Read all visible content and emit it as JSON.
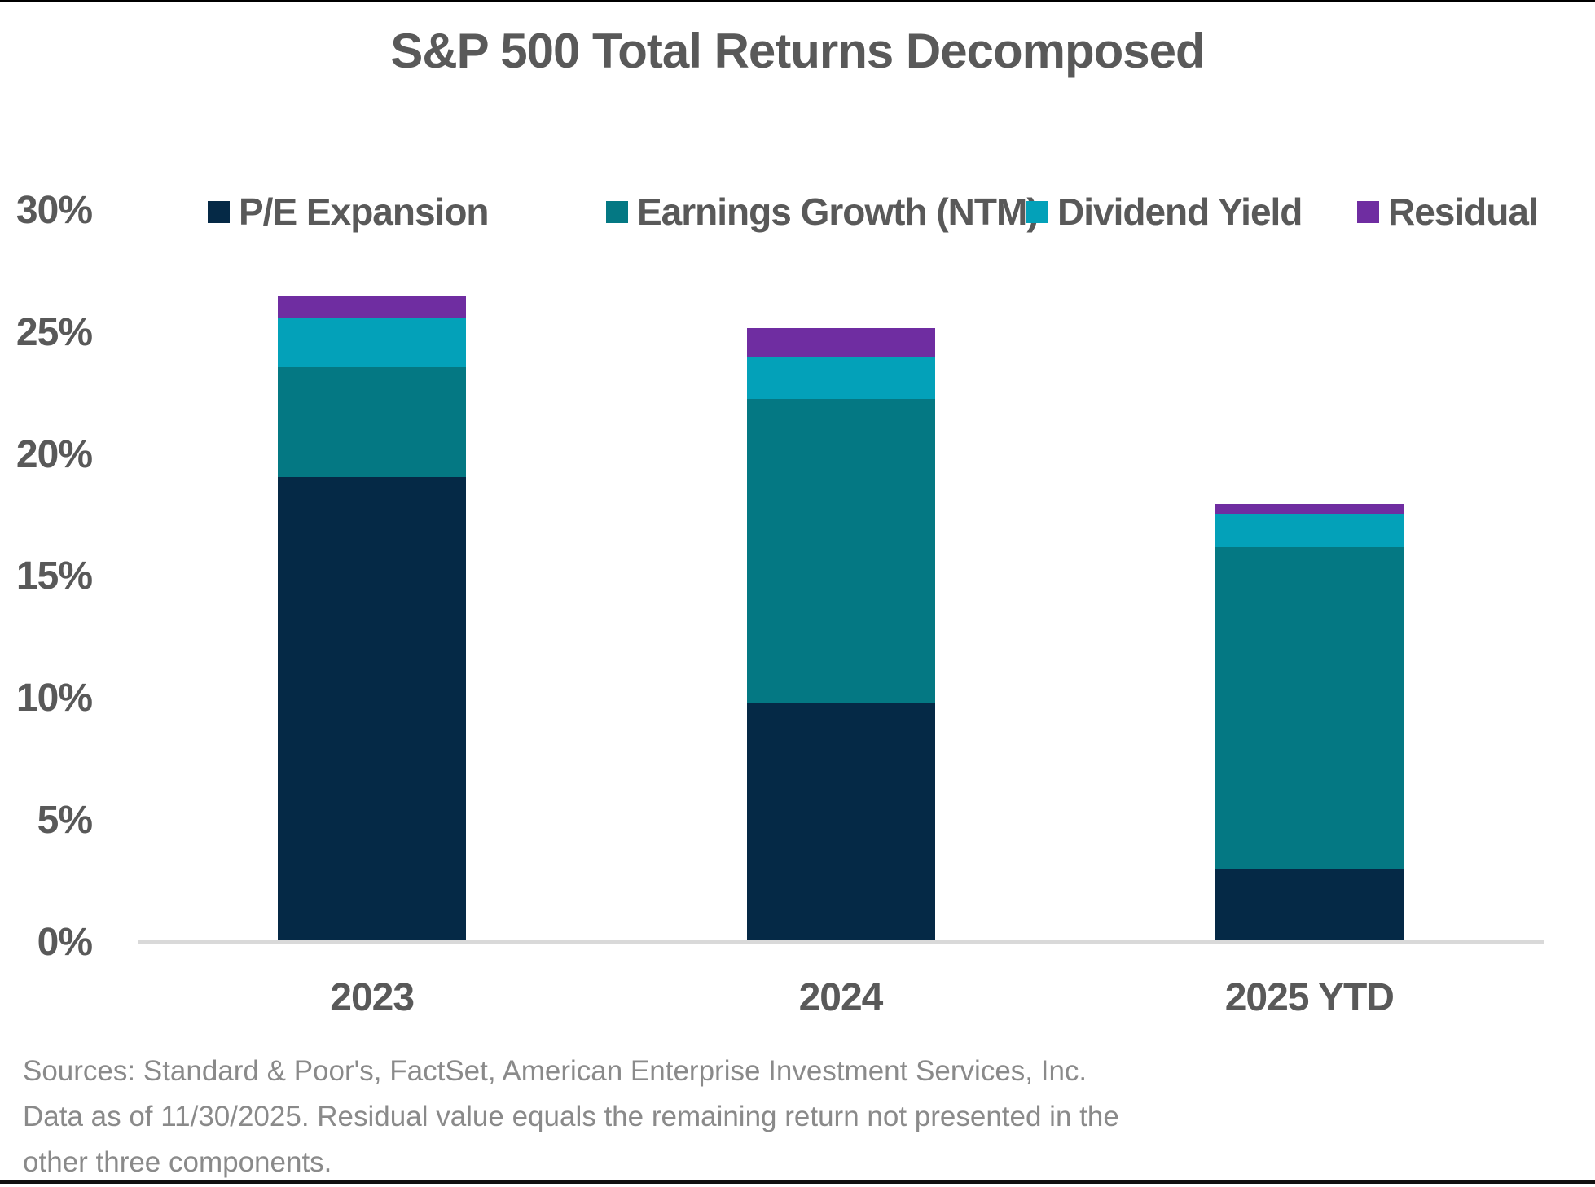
{
  "page": {
    "title": "S&P 500 Total Returns Decomposed",
    "source_lines": [
      "Sources: Standard & Poor's, FactSet, American Enterprise Investment Services, Inc.",
      "Data as of 11/30/2025. Residual value equals the remaining return not presented in the",
      "other three components."
    ]
  },
  "chart_data": {
    "type": "bar",
    "stacked": true,
    "title": "S&P 500 Total Returns Decomposed",
    "categories": [
      "2023",
      "2024",
      "2025 YTD"
    ],
    "series": [
      {
        "name": "P/E Expansion",
        "color": "#052946",
        "values": [
          19.0,
          9.7,
          2.9
        ]
      },
      {
        "name": "Earnings Growth (NTM)",
        "color": "#047883",
        "values": [
          4.5,
          12.5,
          13.2
        ]
      },
      {
        "name": "Dividend Yield",
        "color": "#03A1B9",
        "values": [
          2.0,
          1.7,
          1.4
        ]
      },
      {
        "name": "Residual",
        "color": "#6F2DA1",
        "values": [
          0.9,
          1.2,
          0.4
        ]
      }
    ],
    "stack_totals_pct": [
      26.4,
      25.1,
      17.9
    ],
    "yticks": [
      {
        "value": 0,
        "label": "0%"
      },
      {
        "value": 5,
        "label": "5%"
      },
      {
        "value": 10,
        "label": "10%"
      },
      {
        "value": 15,
        "label": "15%"
      },
      {
        "value": 20,
        "label": "20%"
      },
      {
        "value": 25,
        "label": "25%"
      },
      {
        "value": 30,
        "label": "30%"
      }
    ],
    "ylim": [
      0,
      30
    ],
    "grid": false,
    "legend_position": "top",
    "colors": {
      "label_text": "#595959",
      "source_text": "#8A8A8A",
      "axis_line": "#D9D9D9",
      "page_border": "#000000"
    }
  }
}
